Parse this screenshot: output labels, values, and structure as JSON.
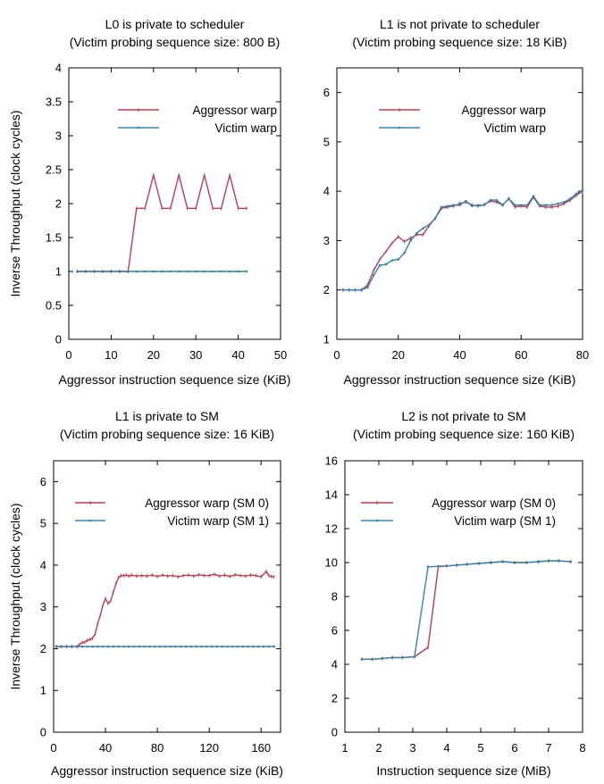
{
  "chart_data": [
    {
      "type": "line",
      "title": "L0 is private to scheduler",
      "subtitle": "(Victim probing sequence size: 800 B)",
      "xlabel": "Aggressor instruction sequence size (KiB)",
      "ylabel": "Inverse Throughput (clock cycles)",
      "xlim": [
        0,
        50
      ],
      "ylim": [
        0,
        4
      ],
      "xticks": [
        "0",
        "10",
        "20",
        "30",
        "40",
        "50"
      ],
      "yticks": [
        "0",
        "0.5",
        "1",
        "1.5",
        "2",
        "2.5",
        "3",
        "3.5",
        "4"
      ],
      "legend_position": "top-right",
      "series": [
        {
          "name": "Aggressor warp",
          "color": "#c23b4e",
          "x": [
            2,
            4,
            6,
            8,
            10,
            12,
            14,
            16,
            18,
            20,
            22,
            24,
            26,
            28,
            30,
            32,
            34,
            36,
            38,
            40,
            42
          ],
          "y": [
            1,
            1,
            1,
            1,
            1,
            1,
            1,
            1.93,
            1.93,
            2.42,
            1.93,
            1.93,
            2.42,
            1.93,
            1.93,
            2.42,
            1.93,
            1.93,
            2.42,
            1.93,
            1.93
          ]
        },
        {
          "name": "Victim warp",
          "color": "#2e86b0",
          "x": [
            2,
            4,
            6,
            8,
            10,
            12,
            14,
            16,
            18,
            20,
            22,
            24,
            26,
            28,
            30,
            32,
            34,
            36,
            38,
            40,
            42
          ],
          "y": [
            1,
            1,
            1,
            1,
            1,
            1,
            1,
            1,
            1,
            1,
            1,
            1,
            1,
            1,
            1,
            1,
            1,
            1,
            1,
            1,
            1
          ]
        }
      ]
    },
    {
      "type": "line",
      "title": "L1 is not private to scheduler",
      "subtitle": "(Victim probing sequence size: 18 KiB)",
      "xlabel": "Aggressor instruction sequence size (KiB)",
      "ylabel": "",
      "xlim": [
        0,
        80
      ],
      "ylim": [
        1,
        6.5
      ],
      "xticks": [
        "0",
        "20",
        "40",
        "60",
        "80"
      ],
      "yticks": [
        "1",
        "2",
        "3",
        "4",
        "5",
        "6"
      ],
      "legend_position": "top-right",
      "series": [
        {
          "name": "Aggressor warp",
          "color": "#c23b4e",
          "x": [
            2,
            4,
            6,
            8,
            10,
            12,
            14,
            16,
            18,
            20,
            22,
            24,
            26,
            28,
            30,
            32,
            34,
            36,
            38,
            40,
            42,
            44,
            46,
            48,
            50,
            52,
            54,
            56,
            58,
            60,
            62,
            64,
            66,
            68,
            70,
            72,
            74,
            76,
            78,
            80
          ],
          "y": [
            2,
            2,
            2,
            2,
            2.1,
            2.4,
            2.62,
            2.78,
            2.95,
            3.08,
            2.98,
            3.05,
            3.12,
            3.12,
            3.3,
            3.45,
            3.65,
            3.68,
            3.7,
            3.75,
            3.78,
            3.72,
            3.7,
            3.73,
            3.8,
            3.78,
            3.72,
            3.85,
            3.68,
            3.7,
            3.68,
            3.88,
            3.7,
            3.68,
            3.68,
            3.7,
            3.75,
            3.82,
            3.92,
            4.0
          ]
        },
        {
          "name": "Victim warp",
          "color": "#2e86b0",
          "x": [
            2,
            4,
            6,
            8,
            10,
            12,
            14,
            16,
            18,
            20,
            22,
            24,
            26,
            28,
            30,
            32,
            34,
            36,
            38,
            40,
            42,
            44,
            46,
            48,
            50,
            52,
            54,
            56,
            58,
            60,
            62,
            64,
            66,
            68,
            70,
            72,
            74,
            76,
            78,
            80
          ],
          "y": [
            2,
            2,
            2,
            2,
            2.05,
            2.3,
            2.5,
            2.52,
            2.6,
            2.62,
            2.75,
            3.0,
            3.15,
            3.25,
            3.32,
            3.45,
            3.68,
            3.7,
            3.72,
            3.72,
            3.8,
            3.7,
            3.72,
            3.72,
            3.82,
            3.82,
            3.72,
            3.85,
            3.72,
            3.72,
            3.72,
            3.9,
            3.72,
            3.72,
            3.72,
            3.75,
            3.78,
            3.85,
            3.95,
            4.02
          ]
        }
      ]
    },
    {
      "type": "line",
      "title": "L1 is private to SM",
      "subtitle": "(Victim probing sequence size: 16 KiB)",
      "xlabel": "Aggressor instruction sequence size (KiB)",
      "ylabel": "Inverse Throughput (clock cycles)",
      "xlim": [
        0,
        175
      ],
      "ylim": [
        0,
        6.5
      ],
      "xticks": [
        "0",
        "40",
        "80",
        "120",
        "160"
      ],
      "yticks": [
        "0",
        "1",
        "2",
        "3",
        "4",
        "5",
        "6"
      ],
      "legend_position": "top-right",
      "series": [
        {
          "name": "Aggressor warp (SM 0)",
          "color": "#c23b4e",
          "x": [
            2,
            6,
            10,
            14,
            18,
            20,
            22,
            24,
            26,
            28,
            30,
            32,
            34,
            36,
            38,
            40,
            42,
            44,
            46,
            48,
            50,
            52,
            54,
            56,
            58,
            60,
            64,
            68,
            72,
            76,
            80,
            84,
            88,
            92,
            96,
            100,
            104,
            108,
            112,
            116,
            120,
            124,
            128,
            132,
            136,
            140,
            144,
            148,
            152,
            156,
            160,
            164,
            166,
            168,
            170
          ],
          "y": [
            2.05,
            2.05,
            2.05,
            2.05,
            2.05,
            2.1,
            2.15,
            2.15,
            2.2,
            2.22,
            2.25,
            2.35,
            2.6,
            2.8,
            3.05,
            3.2,
            3.08,
            3.15,
            3.35,
            3.55,
            3.7,
            3.75,
            3.75,
            3.76,
            3.74,
            3.76,
            3.74,
            3.75,
            3.74,
            3.76,
            3.73,
            3.76,
            3.74,
            3.75,
            3.72,
            3.75,
            3.76,
            3.74,
            3.77,
            3.75,
            3.75,
            3.78,
            3.74,
            3.76,
            3.73,
            3.77,
            3.75,
            3.74,
            3.76,
            3.75,
            3.72,
            3.85,
            3.75,
            3.73,
            3.72
          ]
        },
        {
          "name": "Victim warp (SM 1)",
          "color": "#2e86b0",
          "x": [
            2,
            6,
            10,
            14,
            18,
            22,
            26,
            30,
            34,
            38,
            42,
            46,
            50,
            54,
            58,
            62,
            66,
            70,
            74,
            78,
            82,
            86,
            90,
            94,
            98,
            102,
            106,
            110,
            114,
            118,
            122,
            126,
            130,
            134,
            138,
            142,
            146,
            150,
            154,
            158,
            162,
            166,
            170
          ],
          "y": [
            2.05,
            2.05,
            2.05,
            2.05,
            2.05,
            2.05,
            2.05,
            2.05,
            2.05,
            2.05,
            2.05,
            2.05,
            2.05,
            2.05,
            2.05,
            2.05,
            2.05,
            2.05,
            2.05,
            2.05,
            2.05,
            2.05,
            2.05,
            2.05,
            2.05,
            2.05,
            2.05,
            2.05,
            2.05,
            2.05,
            2.05,
            2.05,
            2.05,
            2.05,
            2.05,
            2.05,
            2.05,
            2.05,
            2.05,
            2.05,
            2.05,
            2.05,
            2.05
          ]
        }
      ]
    },
    {
      "type": "line",
      "title": "L2 is not private to SM",
      "subtitle": "(Victim probing sequence size: 160 KiB)",
      "xlabel": "Instruction sequence size (MiB)",
      "ylabel": "",
      "xlim": [
        1,
        8
      ],
      "ylim": [
        0,
        16
      ],
      "xticks": [
        "1",
        "2",
        "3",
        "4",
        "5",
        "6",
        "7",
        "8"
      ],
      "yticks": [
        "0",
        "2",
        "4",
        "6",
        "8",
        "10",
        "12",
        "14",
        "16"
      ],
      "legend_position": "top-right",
      "series": [
        {
          "name": "Aggressor warp (SM 0)",
          "color": "#c23b4e",
          "x": [
            1.5,
            1.8,
            2.1,
            2.4,
            2.7,
            3.05,
            3.45,
            3.75,
            4.0,
            4.3,
            4.6,
            4.95,
            5.3,
            5.65,
            6.0,
            6.35,
            6.7,
            7.0,
            7.3,
            7.65
          ],
          "y": [
            4.3,
            4.3,
            4.35,
            4.4,
            4.4,
            4.45,
            5.0,
            9.75,
            9.8,
            9.85,
            9.9,
            9.95,
            10.0,
            10.05,
            10.0,
            10.0,
            10.05,
            10.1,
            10.1,
            10.05
          ]
        },
        {
          "name": "Victim warp (SM 1)",
          "color": "#2e86b0",
          "x": [
            1.5,
            1.8,
            2.1,
            2.4,
            2.7,
            3.05,
            3.45,
            3.75,
            4.0,
            4.3,
            4.6,
            4.95,
            5.3,
            5.65,
            6.0,
            6.35,
            6.7,
            7.0,
            7.3,
            7.65
          ],
          "y": [
            4.3,
            4.3,
            4.35,
            4.4,
            4.4,
            4.45,
            9.75,
            9.78,
            9.8,
            9.85,
            9.9,
            9.95,
            10.0,
            10.05,
            10.0,
            10.0,
            10.05,
            10.1,
            10.1,
            10.05
          ]
        }
      ]
    }
  ]
}
